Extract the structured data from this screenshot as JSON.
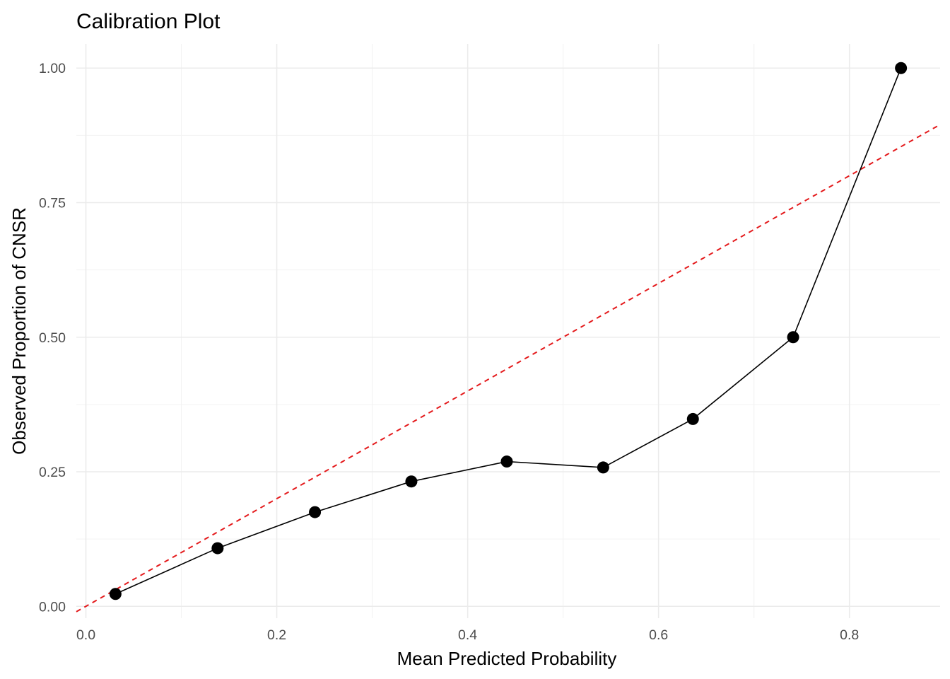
{
  "chart_data": {
    "type": "line",
    "title": "Calibration Plot",
    "xlabel": "Mean Predicted Probability",
    "ylabel": "Observed Proportion of CNSR",
    "xlim": [
      -0.01,
      0.895
    ],
    "ylim": [
      -0.022,
      1.045
    ],
    "x_ticks": [
      0.0,
      0.2,
      0.4,
      0.6,
      0.8
    ],
    "x_tick_labels": [
      "0.0",
      "0.2",
      "0.4",
      "0.6",
      "0.8"
    ],
    "y_ticks": [
      0.0,
      0.25,
      0.5,
      0.75,
      1.0
    ],
    "y_tick_labels": [
      "0.00",
      "0.25",
      "0.50",
      "0.75",
      "1.00"
    ],
    "grid": true,
    "series": [
      {
        "type": "line+points",
        "color": "#000000",
        "x": [
          0.031,
          0.138,
          0.24,
          0.341,
          0.441,
          0.542,
          0.636,
          0.741,
          0.854
        ],
        "y": [
          0.023,
          0.108,
          0.175,
          0.232,
          0.269,
          0.258,
          0.348,
          0.5,
          1.0
        ]
      },
      {
        "type": "reference-line",
        "style": "dashed",
        "color": "#e41a1c",
        "x": [
          -0.01,
          0.895
        ],
        "y": [
          -0.01,
          0.895
        ]
      }
    ]
  }
}
